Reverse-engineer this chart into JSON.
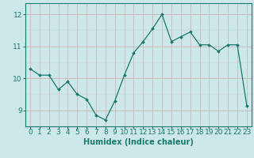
{
  "x": [
    0,
    1,
    2,
    3,
    4,
    5,
    6,
    7,
    8,
    9,
    10,
    11,
    12,
    13,
    14,
    15,
    16,
    17,
    18,
    19,
    20,
    21,
    22,
    23
  ],
  "y": [
    10.3,
    10.1,
    10.1,
    9.65,
    9.9,
    9.5,
    9.35,
    8.85,
    8.7,
    9.3,
    10.1,
    10.8,
    11.15,
    11.55,
    12.0,
    11.15,
    11.3,
    11.45,
    11.05,
    11.05,
    10.85,
    11.05,
    11.05,
    9.15
  ],
  "line_color": "#1a7a6e",
  "marker": "D",
  "marker_size": 2.0,
  "bg_color": "#cce8e8",
  "grid_color": "#b8c8c8",
  "grid_color_v": "#d4a0a0",
  "xlabel": "Humidex (Indice chaleur)",
  "ylim": [
    8.5,
    12.35
  ],
  "xlim": [
    -0.5,
    23.5
  ],
  "yticks": [
    9,
    10,
    11,
    12
  ],
  "xticks": [
    0,
    1,
    2,
    3,
    4,
    5,
    6,
    7,
    8,
    9,
    10,
    11,
    12,
    13,
    14,
    15,
    16,
    17,
    18,
    19,
    20,
    21,
    22,
    23
  ],
  "label_fontsize": 7,
  "tick_fontsize": 6.5
}
